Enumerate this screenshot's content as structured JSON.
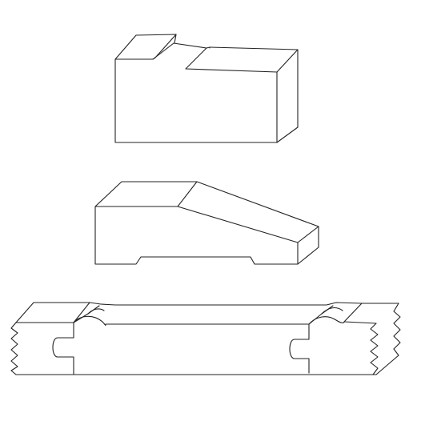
{
  "diagram": {
    "background": "#ffffff",
    "line_color": "#222222",
    "items": [
      {
        "name": "notched-block",
        "kind": "block-with-rebate"
      },
      {
        "name": "chamfered-moulding",
        "kind": "moulding-profile"
      },
      {
        "name": "tongue-groove-board",
        "kind": "board-profile-broken-ends"
      }
    ]
  }
}
